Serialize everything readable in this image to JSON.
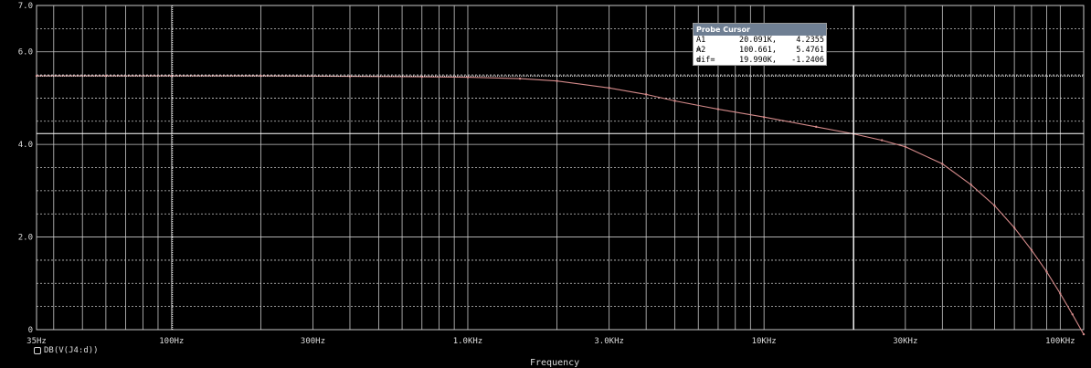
{
  "chart_data": {
    "type": "line",
    "xscale": "log",
    "xlim": [
      35,
      120000
    ],
    "ylim": [
      0,
      7.0
    ],
    "xlabel": "Frequency",
    "ylabel": "",
    "title": "",
    "grid": true,
    "xticks": [
      {
        "value": 35,
        "label": "35Hz"
      },
      {
        "value": 100,
        "label": "100Hz"
      },
      {
        "value": 300,
        "label": "300Hz"
      },
      {
        "value": 1000,
        "label": "1.0KHz"
      },
      {
        "value": 3000,
        "label": "3.0KHz"
      },
      {
        "value": 10000,
        "label": "10KHz"
      },
      {
        "value": 30000,
        "label": "30KHz"
      },
      {
        "value": 100000,
        "label": "100KHz"
      }
    ],
    "yticks": [
      {
        "value": 0,
        "label": "0"
      },
      {
        "value": 2.0,
        "label": "2.0"
      },
      {
        "value": 4.0,
        "label": "4.0"
      },
      {
        "value": 6.0,
        "label": "6.0"
      },
      {
        "value": 7.0,
        "label": "7.0"
      }
    ],
    "series": [
      {
        "name": "DB(V(J4:d))",
        "color": "#d48a8a",
        "x": [
          35,
          60,
          100,
          200,
          400,
          700,
          1000,
          1500,
          2000,
          3000,
          4000,
          5000,
          7000,
          10000,
          15000,
          20000,
          25000,
          30000,
          40000,
          50000,
          60000,
          70000,
          80000,
          90000,
          100000,
          110000,
          120000
        ],
        "y": [
          5.48,
          5.48,
          5.48,
          5.48,
          5.47,
          5.46,
          5.45,
          5.42,
          5.37,
          5.22,
          5.08,
          4.94,
          4.76,
          4.59,
          4.38,
          4.23,
          4.09,
          3.95,
          3.58,
          3.13,
          2.68,
          2.2,
          1.72,
          1.25,
          0.78,
          0.33,
          -0.1
        ]
      }
    ]
  },
  "cursor": {
    "title": "Probe Cursor",
    "rows": [
      {
        "name": "A1 =",
        "x": "20.091K,",
        "y": "4.2355"
      },
      {
        "name": "A2 =",
        "x": "100.661,",
        "y": "5.4761"
      },
      {
        "name": "dif=",
        "x": "19.990K,",
        "y": "-1.2406"
      }
    ],
    "a1": {
      "x": 20091,
      "y": 4.2355
    },
    "a2": {
      "x": 100.661,
      "y": 5.4761
    }
  },
  "legend": {
    "symbol": "square-icon",
    "label": "DB(V(J4:d))"
  },
  "colors": {
    "background": "#000000",
    "grid": "#c8c8c8",
    "trace": "#d48a8a",
    "cursor": "#ffffff"
  }
}
